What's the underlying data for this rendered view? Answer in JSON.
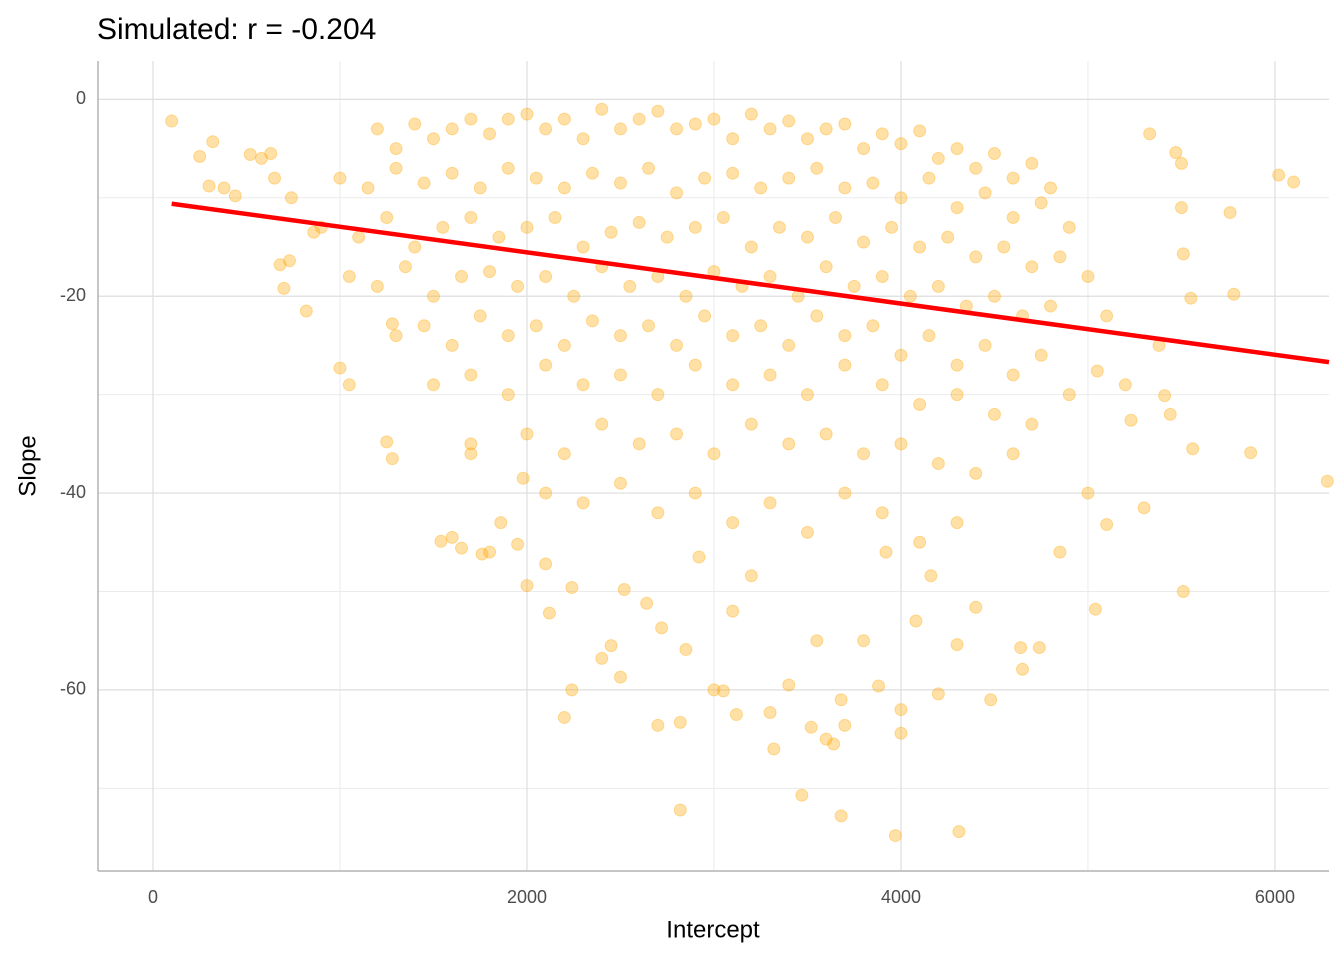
{
  "chart_data": {
    "type": "scatter",
    "title": "Simulated: r = -0.204",
    "x_label": "Intercept",
    "y_label": "Slope",
    "color": "#ffa500",
    "opacity": 0.35,
    "xlim": [
      -294,
      6289
    ],
    "ylim": [
      -78.4,
      3.9
    ],
    "xticks": [
      0,
      2000,
      4000,
      6000
    ],
    "yticks": [
      0,
      -20,
      -40,
      -60
    ],
    "minor_xticks": [
      1000,
      3000,
      5000
    ],
    "minor_yticks": [
      -10,
      -30,
      -50,
      -70
    ],
    "grid": true,
    "x": [
      100,
      250,
      320,
      300,
      380,
      440,
      520,
      580,
      650,
      630,
      680,
      700,
      730,
      740,
      820,
      860,
      1000,
      1050,
      1250,
      1280,
      1280,
      1540,
      1600,
      1650,
      1700,
      1760,
      1800,
      1860,
      1950,
      1980,
      2000,
      2100,
      2120,
      2200,
      2240,
      2240,
      2400,
      2450,
      2500,
      2520,
      2640,
      2700,
      2720,
      2820,
      2820,
      2850,
      2920,
      3000,
      3050,
      3100,
      3120,
      3200,
      3300,
      3320,
      3400,
      3470,
      3520,
      3550,
      3600,
      3640,
      3680,
      3680,
      3700,
      3800,
      3880,
      3920,
      3970,
      4000,
      4000,
      4080,
      4160,
      4200,
      4300,
      4310,
      4400,
      4480,
      4640,
      4650,
      4740,
      4850,
      5000,
      5040,
      5100,
      5230,
      5300,
      5330,
      5410,
      5440,
      5470,
      5500,
      5500,
      5510,
      5510,
      5560,
      5550,
      5760,
      5780,
      5870,
      6020,
      6100,
      6280,
      5380,
      5200,
      5050,
      4900,
      1200,
      1300,
      1400,
      1500,
      1600,
      1700,
      1800,
      1900,
      2000,
      2100,
      2200,
      2300,
      2400,
      2500,
      2600,
      2700,
      2800,
      2900,
      3000,
      3100,
      3200,
      3300,
      3400,
      3500,
      3600,
      3700,
      3800,
      3900,
      4000,
      4100,
      4200,
      4300,
      4400,
      4500,
      4600,
      4700,
      4800,
      1000,
      1150,
      1300,
      1450,
      1600,
      1750,
      1900,
      2050,
      2200,
      2350,
      2500,
      2650,
      2800,
      2950,
      3100,
      3250,
      3400,
      3550,
      3700,
      3850,
      4000,
      4150,
      4300,
      4450,
      4600,
      4750,
      4900,
      900,
      1100,
      1250,
      1400,
      1550,
      1700,
      1850,
      2000,
      2150,
      2300,
      2450,
      2600,
      2750,
      2900,
      3050,
      3200,
      3350,
      3500,
      3650,
      3800,
      3950,
      4100,
      4250,
      4400,
      4550,
      4700,
      4850,
      5000,
      1050,
      1200,
      1350,
      1500,
      1650,
      1800,
      1950,
      2100,
      2250,
      2400,
      2550,
      2700,
      2850,
      3000,
      3150,
      3300,
      3450,
      3600,
      3750,
      3900,
      4050,
      4200,
      4350,
      4500,
      4650,
      4800,
      5100,
      1300,
      1450,
      1600,
      1750,
      1900,
      2050,
      2200,
      2350,
      2500,
      2650,
      2800,
      2950,
      3100,
      3250,
      3400,
      3550,
      3700,
      3850,
      4000,
      4150,
      4300,
      4450,
      4600,
      4750,
      1500,
      1700,
      1900,
      2100,
      2300,
      2500,
      2700,
      2900,
      3100,
      3300,
      3500,
      3700,
      3900,
      4100,
      4300,
      4500,
      4700,
      1700,
      2000,
      2200,
      2400,
      2600,
      2800,
      3000,
      3200,
      3400,
      3600,
      3800,
      4000,
      4200,
      4400,
      4600,
      2100,
      2300,
      2500,
      2700,
      2900,
      3100,
      3300,
      3500,
      3700,
      3900,
      4100,
      4300
    ],
    "values": [
      -2.2,
      -5.8,
      -4.3,
      -8.8,
      -9,
      -9.8,
      -5.6,
      -6,
      -8,
      -5.5,
      -16.8,
      -19.2,
      -16.4,
      -10,
      -21.5,
      -13.5,
      -27.3,
      -29,
      -34.8,
      -36.5,
      -22.8,
      -44.9,
      -44.5,
      -45.6,
      -36,
      -46.2,
      -46,
      -43,
      -45.2,
      -38.5,
      -49.4,
      -47.2,
      -52.2,
      -62.8,
      -60,
      -49.6,
      -56.8,
      -55.5,
      -58.7,
      -49.8,
      -51.2,
      -63.6,
      -53.7,
      -63.3,
      -72.2,
      -55.9,
      -46.5,
      -60,
      -60.1,
      -52,
      -62.5,
      -48.4,
      -62.3,
      -66,
      -59.5,
      -70.7,
      -63.8,
      -55,
      -65,
      -65.5,
      -72.8,
      -61,
      -63.6,
      -55,
      -59.6,
      -46,
      -74.8,
      -62,
      -64.4,
      -53,
      -48.4,
      -60.4,
      -55.4,
      -74.4,
      -51.6,
      -61,
      -55.7,
      -57.9,
      -55.7,
      -46,
      -40,
      -51.8,
      -43.2,
      -32.6,
      -41.5,
      -3.5,
      -30.1,
      -32,
      -5.4,
      -6.5,
      -11,
      -50,
      -15.7,
      -35.5,
      -20.2,
      -11.5,
      -19.8,
      -35.9,
      -7.7,
      -8.4,
      -38.8,
      -25,
      -29,
      -27.6,
      -30,
      -3,
      -5,
      -2.5,
      -4,
      -3,
      -2,
      -3.5,
      -2,
      -1.5,
      -3,
      -2,
      -4,
      -1,
      -3,
      -2,
      -1.2,
      -3,
      -2.5,
      -2,
      -4,
      -1.5,
      -3,
      -2.2,
      -4,
      -3,
      -2.5,
      -5,
      -3.5,
      -4.5,
      -3.2,
      -6,
      -5,
      -7,
      -5.5,
      -8,
      -6.5,
      -9,
      -8,
      -9,
      -7,
      -8.5,
      -7.5,
      -9,
      -7,
      -8,
      -9,
      -7.5,
      -8.5,
      -7,
      -9.5,
      -8,
      -7.5,
      -9,
      -8,
      -7,
      -9,
      -8.5,
      -10,
      -8,
      -11,
      -9.5,
      -12,
      -10.5,
      -13,
      -13,
      -14,
      -12,
      -15,
      -13,
      -12,
      -14,
      -13,
      -12,
      -15,
      -13.5,
      -12.5,
      -14,
      -13,
      -12,
      -15,
      -13,
      -14,
      -12,
      -14.5,
      -13,
      -15,
      -14,
      -16,
      -15,
      -17,
      -16,
      -18,
      -18,
      -19,
      -17,
      -20,
      -18,
      -17.5,
      -19,
      -18,
      -20,
      -17,
      -19,
      -18,
      -20,
      -17.5,
      -19,
      -18,
      -20,
      -17,
      -19,
      -18,
      -20,
      -19,
      -21,
      -20,
      -22,
      -21,
      -22,
      -24,
      -23,
      -25,
      -22,
      -24,
      -23,
      -25,
      -22.5,
      -24,
      -23,
      -25,
      -22,
      -24,
      -23,
      -25,
      -22,
      -24,
      -23,
      -26,
      -24,
      -27,
      -25,
      -28,
      -26,
      -29,
      -28,
      -30,
      -27,
      -29,
      -28,
      -30,
      -27,
      -29,
      -28,
      -30,
      -27,
      -29,
      -31,
      -30,
      -32,
      -33,
      -35,
      -34,
      -36,
      -33,
      -35,
      -34,
      -36,
      -33,
      -35,
      -34,
      -36,
      -35,
      -37,
      -38,
      -36,
      -40,
      -41,
      -39,
      -42,
      -40,
      -43,
      -41,
      -44,
      -40,
      -42,
      -45,
      -43
    ],
    "fit": {
      "color": "#ff0000",
      "x": [
        100,
        6289
      ],
      "values": [
        -10.6,
        -26.7
      ]
    }
  }
}
